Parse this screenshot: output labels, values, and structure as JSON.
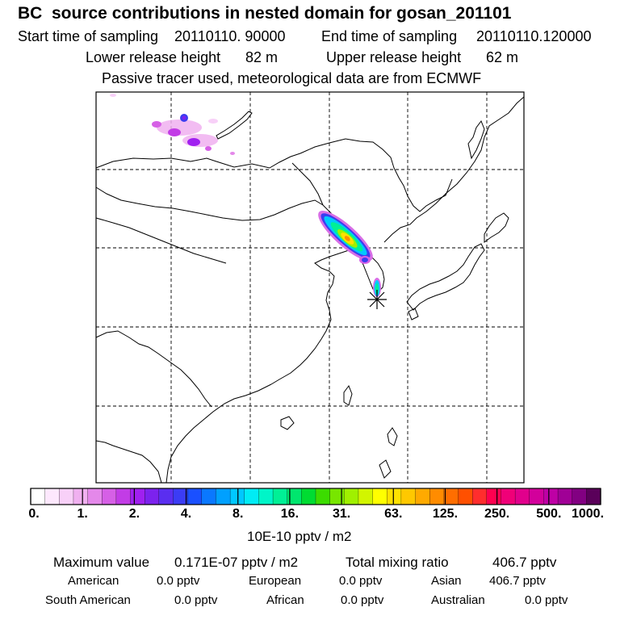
{
  "header": {
    "title": "BC  source contributions in nested domain for gosan_201101",
    "start_label": "Start time of sampling",
    "start_value": "20110110. 90000",
    "end_label": "End time of sampling",
    "end_value": "20110110.120000",
    "lower_label": "Lower release height",
    "lower_value": "82 m",
    "upper_label": "Upper release height",
    "upper_value": "62 m",
    "tracer_note": "Passive tracer used, meteorological data are from ECMWF"
  },
  "colors": {
    "scale": [
      "#ffffff",
      "#fde8fd",
      "#f8d0f8",
      "#f0b0f0",
      "#e488ea",
      "#d660e6",
      "#c23ce6",
      "#a020f0",
      "#7c22ee",
      "#5a2ef0",
      "#3b3cf5",
      "#1a50ff",
      "#0a78ff",
      "#00a0ff",
      "#00c8ff",
      "#00ecf5",
      "#00f5c8",
      "#00f096",
      "#00e66e",
      "#00dc32",
      "#3cdc00",
      "#78e600",
      "#a0f000",
      "#d2f500",
      "#ffff00",
      "#ffe100",
      "#ffc800",
      "#ffaa00",
      "#ff8c00",
      "#ff6e00",
      "#ff5000",
      "#ff2d2d",
      "#ff0050",
      "#f00078",
      "#e1008c",
      "#d2009b",
      "#be00a5",
      "#a00096",
      "#820082",
      "#5a005a"
    ],
    "marker": "#228b22",
    "plume": [
      "#d86ee6",
      "#3c3cf0",
      "#00c8ff",
      "#00f096",
      "#a0f000",
      "#ffe100",
      "#ff8c00"
    ]
  },
  "map": {
    "outline_color": "#000000",
    "grid_style": "dashed",
    "receptor_marker": "star"
  },
  "legend": {
    "tick_labels": [
      "0.",
      "1.",
      "2.",
      "4.",
      "8.",
      "16.",
      "31.",
      "63.",
      "125.",
      "250.",
      "500.",
      "1000."
    ],
    "unit": "10E-10 pptv / m2"
  },
  "footer": {
    "max_label": "Maximum value",
    "max_value": "0.171E-07 pptv / m2",
    "total_label": "Total mixing ratio",
    "total_value": "406.7 pptv",
    "regions": [
      {
        "name": "American",
        "value": "0.0 pptv"
      },
      {
        "name": "European",
        "value": "0.0 pptv"
      },
      {
        "name": "Asian",
        "value": "406.7 pptv"
      },
      {
        "name": "South American",
        "value": "0.0 pptv"
      },
      {
        "name": "African",
        "value": "0.0 pptv"
      },
      {
        "name": "Australian",
        "value": "0.0 pptv"
      }
    ]
  }
}
